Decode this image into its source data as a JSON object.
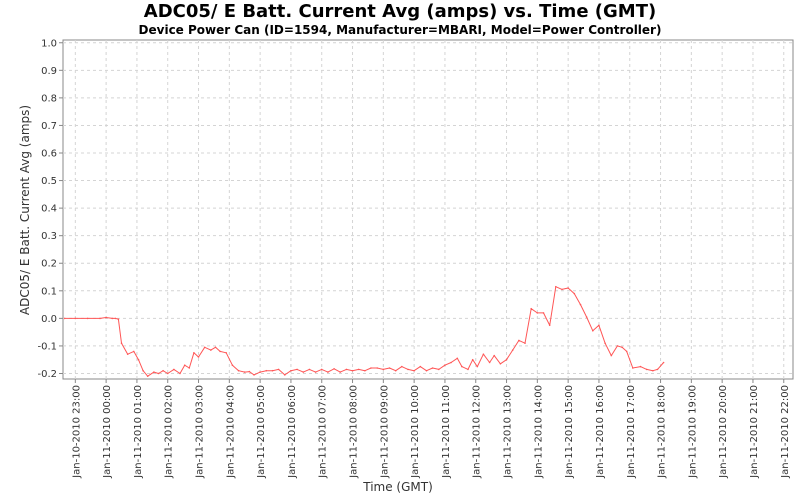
{
  "chart_data": {
    "type": "line",
    "title": "ADC05/ E Batt. Current Avg (amps) vs. Time (GMT)",
    "subtitle": "Device Power Can (ID=1594, Manufacturer=MBARI, Model=Power Controller)",
    "xlabel": "Time (GMT)",
    "ylabel": "ADC05/ E Batt. Current Avg (amps)",
    "ylim": [
      -0.22,
      1.01
    ],
    "xlim": [
      -0.4,
      23.3
    ],
    "grid": true,
    "legend": "none",
    "y_ticks": [
      -0.2,
      -0.1,
      0.0,
      0.1,
      0.2,
      0.3,
      0.4,
      0.5,
      0.6,
      0.7,
      0.8,
      0.9,
      1.0
    ],
    "y_tick_labels": [
      "-0.2",
      "-0.1",
      "0.0",
      "0.1",
      "0.2",
      "0.3",
      "0.4",
      "0.5",
      "0.6",
      "0.7",
      "0.8",
      "0.9",
      "1.0"
    ],
    "x_ticks": [
      0,
      1,
      2,
      3,
      4,
      5,
      6,
      7,
      8,
      9,
      10,
      11,
      12,
      13,
      14,
      15,
      16,
      17,
      18,
      19,
      20,
      21,
      22,
      23
    ],
    "x_tick_labels": [
      "Jan-10-2010 23:00",
      "Jan-11-2010 00:00",
      "Jan-11-2010 01:00",
      "Jan-11-2010 02:00",
      "Jan-11-2010 03:00",
      "Jan-11-2010 04:00",
      "Jan-11-2010 05:00",
      "Jan-11-2010 06:00",
      "Jan-11-2010 07:00",
      "Jan-11-2010 08:00",
      "Jan-11-2010 09:00",
      "Jan-11-2010 10:00",
      "Jan-11-2010 11:00",
      "Jan-11-2010 12:00",
      "Jan-11-2010 13:00",
      "Jan-11-2010 14:00",
      "Jan-11-2010 15:00",
      "Jan-11-2010 16:00",
      "Jan-11-2010 17:00",
      "Jan-11-2010 18:00",
      "Jan-11-2010 19:00",
      "Jan-11-2010 20:00",
      "Jan-11-2010 21:00",
      "Jan-11-2010 22:00"
    ],
    "series": [
      {
        "name": "ADC05/ E Batt. Current Avg",
        "color": "#ff5555",
        "x": [
          -0.35,
          0.0,
          0.4,
          0.8,
          1.0,
          1.2,
          1.3,
          1.4,
          1.5,
          1.7,
          1.9,
          2.05,
          2.2,
          2.35,
          2.55,
          2.7,
          2.85,
          3.0,
          3.2,
          3.4,
          3.55,
          3.7,
          3.85,
          4.0,
          4.2,
          4.4,
          4.55,
          4.7,
          4.9,
          5.1,
          5.3,
          5.5,
          5.65,
          5.8,
          6.0,
          6.2,
          6.4,
          6.6,
          6.8,
          7.0,
          7.2,
          7.4,
          7.6,
          7.8,
          8.0,
          8.2,
          8.4,
          8.6,
          8.8,
          9.0,
          9.2,
          9.4,
          9.6,
          9.8,
          10.0,
          10.2,
          10.4,
          10.6,
          10.8,
          11.0,
          11.2,
          11.4,
          11.6,
          11.8,
          12.0,
          12.2,
          12.4,
          12.55,
          12.75,
          12.9,
          13.05,
          13.25,
          13.45,
          13.6,
          13.8,
          14.0,
          14.2,
          14.4,
          14.6,
          14.8,
          15.0,
          15.2,
          15.4,
          15.6,
          15.8,
          16.0,
          16.2,
          16.4,
          16.6,
          16.8,
          17.0,
          17.2,
          17.4,
          17.6,
          17.75,
          17.9,
          18.1,
          18.35,
          18.55,
          18.75,
          18.9,
          19.1
        ],
        "values": [
          0.0,
          0.0,
          0.0,
          0.0,
          0.003,
          0.0,
          0.0,
          -0.003,
          -0.09,
          -0.13,
          -0.12,
          -0.15,
          -0.19,
          -0.21,
          -0.195,
          -0.2,
          -0.19,
          -0.2,
          -0.185,
          -0.2,
          -0.17,
          -0.18,
          -0.125,
          -0.14,
          -0.105,
          -0.115,
          -0.105,
          -0.12,
          -0.125,
          -0.17,
          -0.19,
          -0.195,
          -0.193,
          -0.205,
          -0.195,
          -0.19,
          -0.19,
          -0.185,
          -0.205,
          -0.19,
          -0.185,
          -0.195,
          -0.185,
          -0.195,
          -0.185,
          -0.195,
          -0.183,
          -0.195,
          -0.185,
          -0.19,
          -0.185,
          -0.19,
          -0.18,
          -0.18,
          -0.185,
          -0.18,
          -0.19,
          -0.175,
          -0.185,
          -0.19,
          -0.175,
          -0.19,
          -0.18,
          -0.185,
          -0.17,
          -0.16,
          -0.145,
          -0.175,
          -0.185,
          -0.15,
          -0.175,
          -0.13,
          -0.16,
          -0.135,
          -0.165,
          -0.15,
          -0.115,
          -0.08,
          -0.09,
          0.035,
          0.02,
          0.02,
          -0.025,
          0.115,
          0.105,
          0.11,
          0.09,
          0.05,
          0.005,
          -0.045,
          -0.025,
          -0.09,
          -0.135,
          -0.1,
          -0.105,
          -0.12,
          -0.18,
          -0.175,
          -0.185,
          -0.19,
          -0.185,
          -0.16
        ]
      }
    ]
  }
}
